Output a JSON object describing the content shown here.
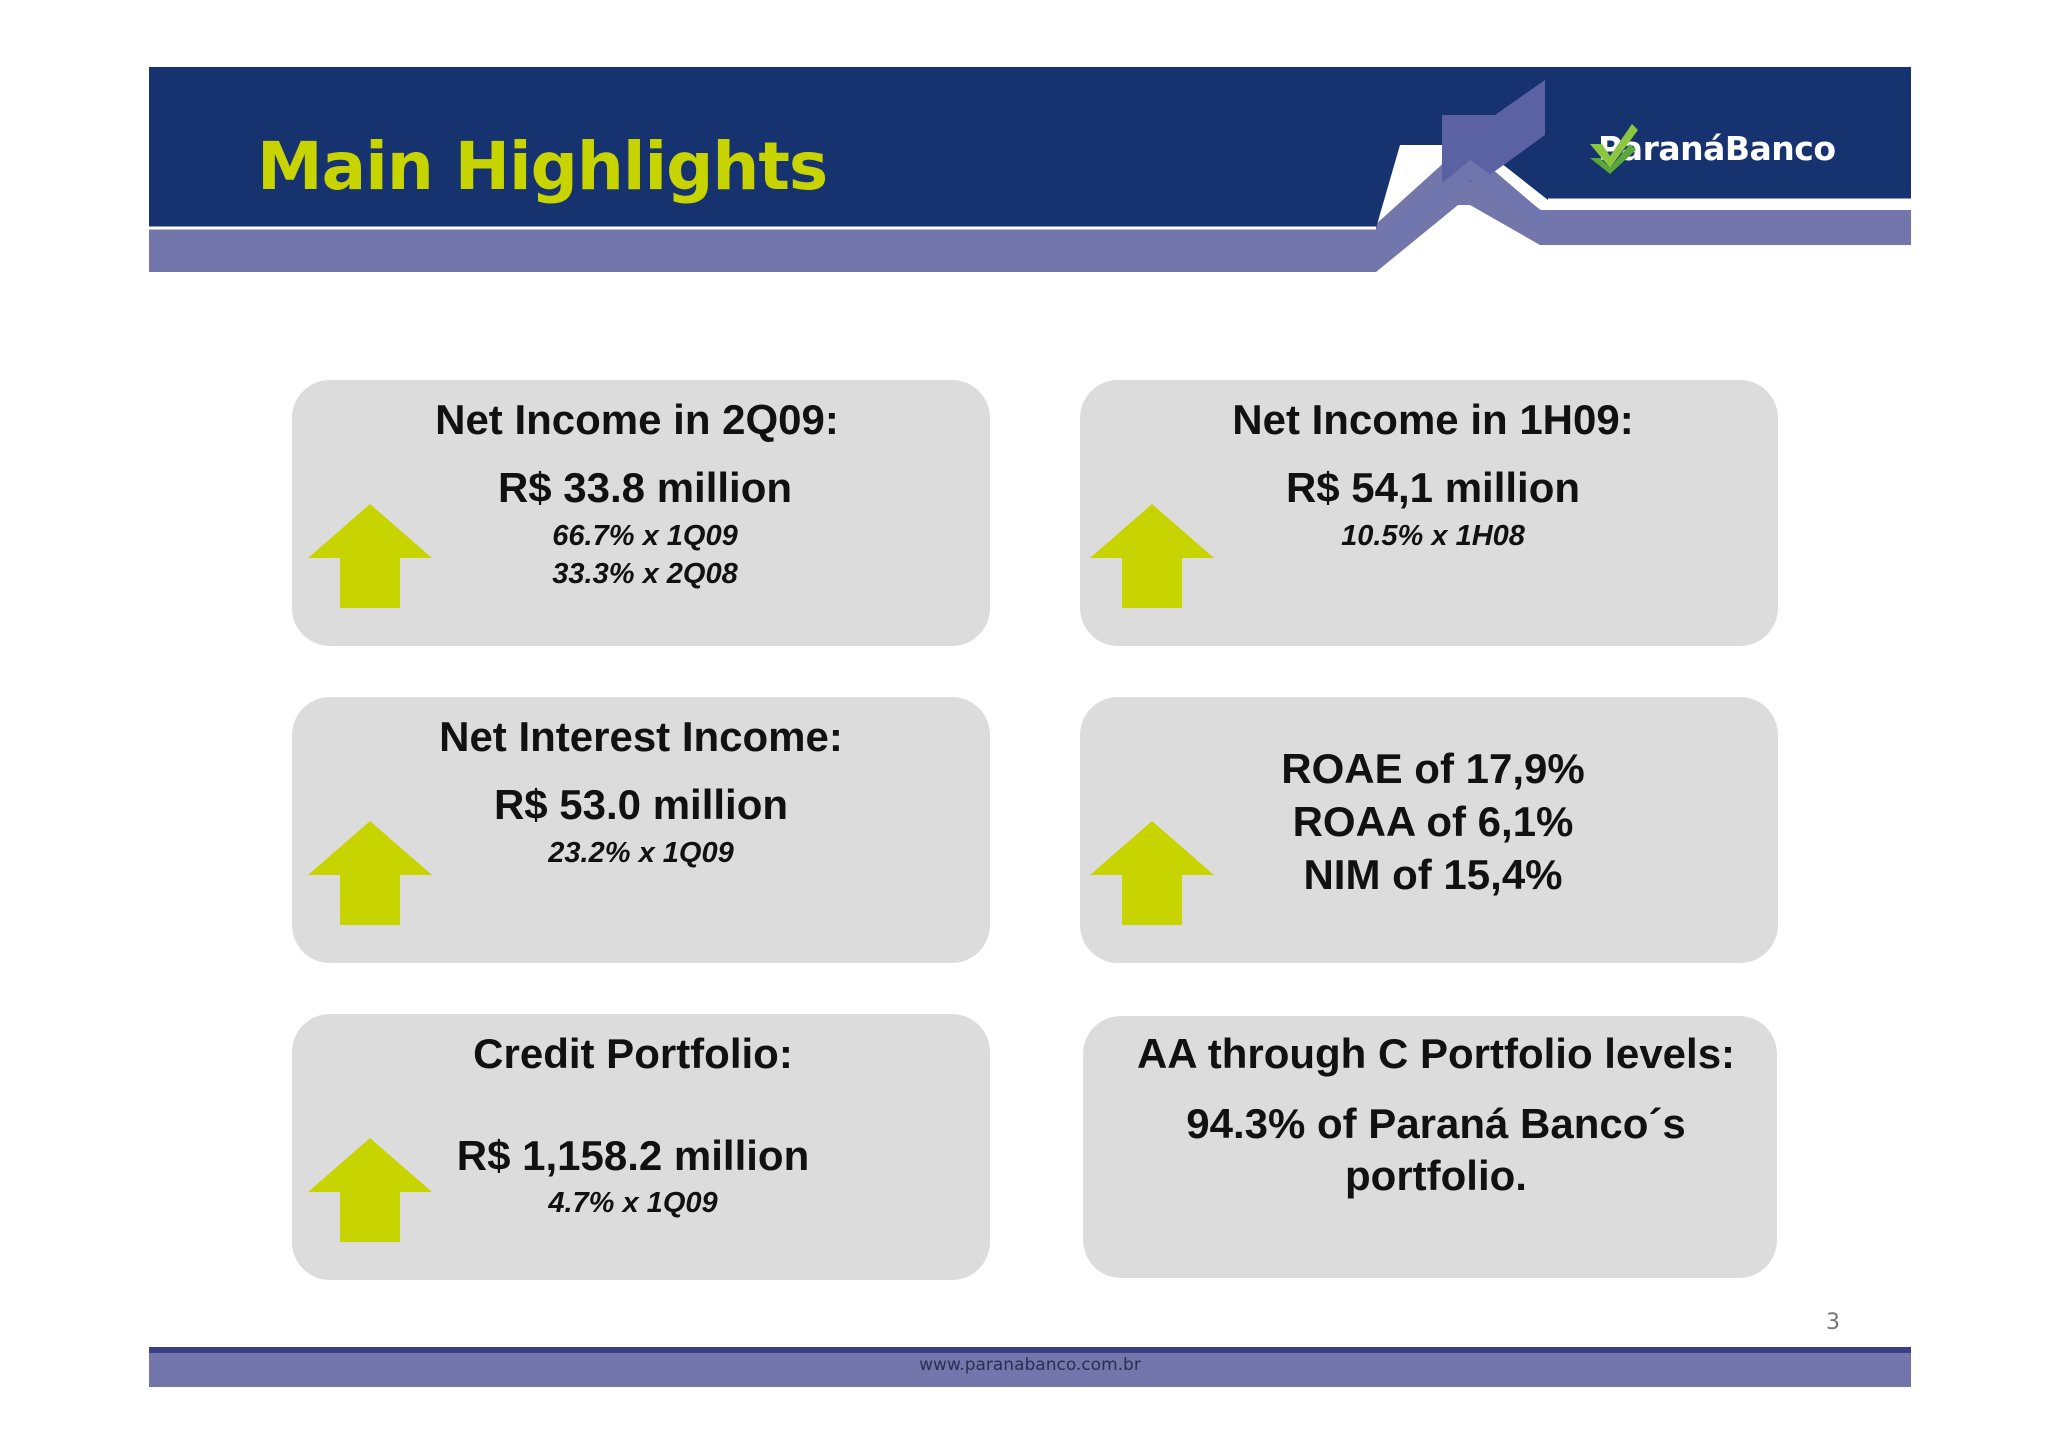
{
  "header": {
    "title": "Main Highlights",
    "logo_text": "ParanáBanco",
    "logo_icon": "checkmark-logo-icon"
  },
  "cards": [
    {
      "heading": "Net Income in 2Q09:",
      "value": "R$ 33.8 million",
      "details": [
        "66.7% x 1Q09",
        "33.3% x 2Q08"
      ],
      "icon": "up-arrow-icon"
    },
    {
      "heading": "Net Income in 1H09:",
      "value": "R$ 54,1 million",
      "details": [
        "10.5% x 1H08"
      ],
      "icon": "up-arrow-icon"
    },
    {
      "heading": "Net Interest Income:",
      "value": "R$ 53.0 million",
      "details": [
        "23.2% x 1Q09"
      ],
      "icon": "up-arrow-icon"
    },
    {
      "lines": [
        "ROAE  of 17,9%",
        "ROAA  of 6,1%",
        "NIM of 15,4%"
      ],
      "icon": "up-arrow-icon"
    },
    {
      "heading": "Credit Portfolio:",
      "value": "R$ 1,158.2 million",
      "details": [
        "4.7% x 1Q09"
      ],
      "icon": "up-arrow-icon"
    },
    {
      "heading": "AA through C Portfolio levels:",
      "lines": [
        "94.3% of Paraná Banco´s",
        "portfolio."
      ]
    }
  ],
  "footer": {
    "url": "www.paranabanco.com.br",
    "page_number": "3"
  },
  "colors": {
    "navy": "#17336f",
    "band": "#7276ab",
    "accent": "#c8d400",
    "card": "#dcdcdd"
  }
}
